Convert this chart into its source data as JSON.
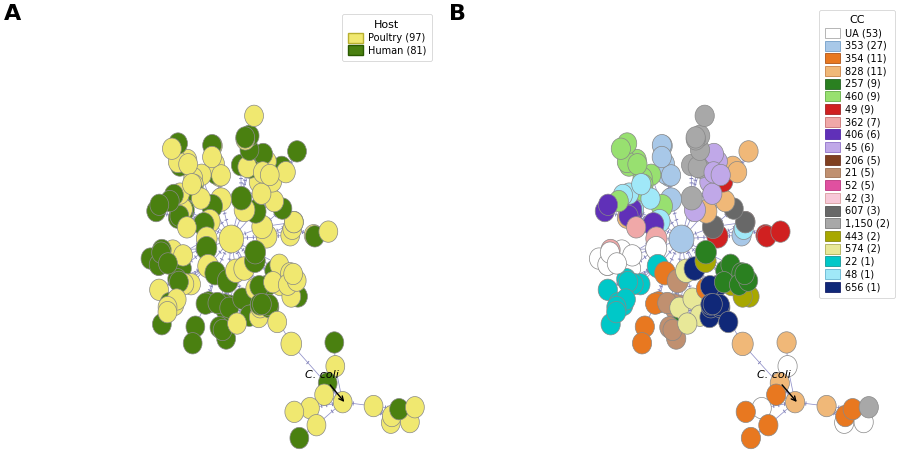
{
  "panel_A": {
    "label": "A",
    "legend_title": "Host",
    "legend_items": [
      {
        "label": "Poultry (97)",
        "color": "#F0E870",
        "edgecolor": "#B8B030"
      },
      {
        "label": "Human (81)",
        "color": "#4A8010",
        "edgecolor": "#2A5A00"
      }
    ]
  },
  "panel_B": {
    "label": "B",
    "legend_title": "CC",
    "legend_items": [
      {
        "label": "UA (53)",
        "color": "#FFFFFF",
        "edgecolor": "#999999"
      },
      {
        "label": "353 (27)",
        "color": "#A8C8E8",
        "edgecolor": "#6090C0"
      },
      {
        "label": "354 (11)",
        "color": "#E87820",
        "edgecolor": "#A04000"
      },
      {
        "label": "828 (11)",
        "color": "#F0B878",
        "edgecolor": "#C07030"
      },
      {
        "label": "257 (9)",
        "color": "#2A8020",
        "edgecolor": "#105010"
      },
      {
        "label": "460 (9)",
        "color": "#98E070",
        "edgecolor": "#50A030"
      },
      {
        "label": "49 (9)",
        "color": "#D02020",
        "edgecolor": "#901010"
      },
      {
        "label": "362 (7)",
        "color": "#F0A8A8",
        "edgecolor": "#C06060"
      },
      {
        "label": "406 (6)",
        "color": "#6030B8",
        "edgecolor": "#4010A0"
      },
      {
        "label": "45 (6)",
        "color": "#C0A8E8",
        "edgecolor": "#8060C0"
      },
      {
        "label": "206 (5)",
        "color": "#804020",
        "edgecolor": "#602010"
      },
      {
        "label": "21 (5)",
        "color": "#C09070",
        "edgecolor": "#906040"
      },
      {
        "label": "52 (5)",
        "color": "#E050A0",
        "edgecolor": "#B02070"
      },
      {
        "label": "42 (3)",
        "color": "#F8C8D8",
        "edgecolor": "#D09090"
      },
      {
        "label": "607 (3)",
        "color": "#686868",
        "edgecolor": "#404040"
      },
      {
        "label": "1,150 (2)",
        "color": "#A8A8A8",
        "edgecolor": "#686868"
      },
      {
        "label": "443 (2)",
        "color": "#A8A800",
        "edgecolor": "#787800"
      },
      {
        "label": "574 (2)",
        "color": "#E8E898",
        "edgecolor": "#A0A040"
      },
      {
        "label": "22 (1)",
        "color": "#00C8C8",
        "edgecolor": "#008888"
      },
      {
        "label": "48 (1)",
        "color": "#A0E8F8",
        "edgecolor": "#50A8C8"
      },
      {
        "label": "656 (1)",
        "color": "#102878",
        "edgecolor": "#000858"
      }
    ]
  },
  "ccoli_annotation": "C. coli",
  "edge_color": "#9090C8",
  "tick_color": "#8080B8",
  "background_color": "#FFFFFF",
  "node_text_color_light": "#333333",
  "node_text_color_dark": "#FFFFFF"
}
